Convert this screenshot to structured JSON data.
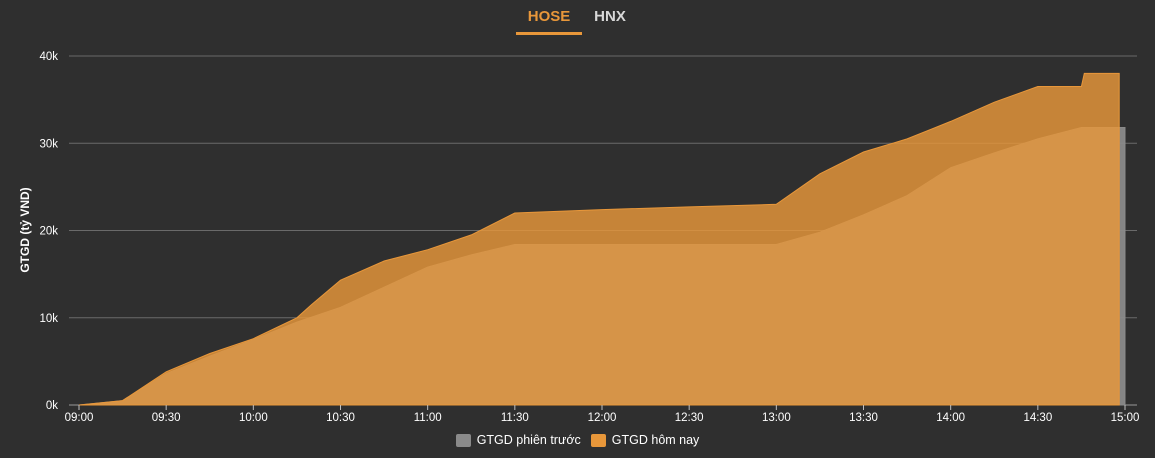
{
  "tabs": [
    {
      "label": "HOSE",
      "active": true
    },
    {
      "label": "HNX",
      "active": false
    }
  ],
  "colors": {
    "background": "#2f2f2f",
    "previous": "#8a8a8a",
    "today": "#e8973a",
    "grid": "#6a6a6a"
  },
  "chart_data": {
    "type": "area",
    "xlabel": "",
    "ylabel": "GTGD (tỷ VND)",
    "x_ticks": [
      "09:00",
      "09:30",
      "10:00",
      "10:30",
      "11:00",
      "11:30",
      "12:00",
      "12:30",
      "13:00",
      "13:30",
      "14:00",
      "14:30",
      "15:00"
    ],
    "y_ticks": [
      "0k",
      "10k",
      "20k",
      "30k",
      "40k"
    ],
    "ylim": [
      0,
      40000
    ],
    "xlim": [
      "09:00",
      "15:00"
    ],
    "grid": true,
    "legend_position": "bottom",
    "series": [
      {
        "name": "GTGD phiên trước",
        "color": "#8a8a8a",
        "points": [
          [
            "09:00",
            0
          ],
          [
            "09:15",
            500
          ],
          [
            "09:30",
            3600
          ],
          [
            "09:45",
            5600
          ],
          [
            "10:00",
            7500
          ],
          [
            "10:15",
            9500
          ],
          [
            "10:30",
            11200
          ],
          [
            "10:45",
            13500
          ],
          [
            "11:00",
            15800
          ],
          [
            "11:15",
            17200
          ],
          [
            "11:30",
            18400
          ],
          [
            "12:00",
            18400
          ],
          [
            "12:30",
            18400
          ],
          [
            "13:00",
            18400
          ],
          [
            "13:15",
            19800
          ],
          [
            "13:30",
            21800
          ],
          [
            "13:45",
            24000
          ],
          [
            "14:00",
            27200
          ],
          [
            "14:15",
            28900
          ],
          [
            "14:30",
            30500
          ],
          [
            "14:45",
            31800
          ],
          [
            "15:00",
            31800
          ]
        ]
      },
      {
        "name": "GTGD hôm nay",
        "color": "#e8973a",
        "points": [
          [
            "09:00",
            0
          ],
          [
            "09:15",
            500
          ],
          [
            "09:30",
            3800
          ],
          [
            "09:45",
            5900
          ],
          [
            "10:00",
            7600
          ],
          [
            "10:15",
            10000
          ],
          [
            "10:20",
            11500
          ],
          [
            "10:30",
            14300
          ],
          [
            "10:45",
            16500
          ],
          [
            "11:00",
            17800
          ],
          [
            "11:15",
            19500
          ],
          [
            "11:30",
            22000
          ],
          [
            "12:00",
            22400
          ],
          [
            "12:30",
            22700
          ],
          [
            "13:00",
            23000
          ],
          [
            "13:15",
            26500
          ],
          [
            "13:30",
            29000
          ],
          [
            "13:45",
            30500
          ],
          [
            "14:00",
            32500
          ],
          [
            "14:15",
            34700
          ],
          [
            "14:30",
            36500
          ],
          [
            "14:45",
            36500
          ],
          [
            "14:46",
            38000
          ],
          [
            "14:58",
            38000
          ]
        ]
      }
    ]
  }
}
